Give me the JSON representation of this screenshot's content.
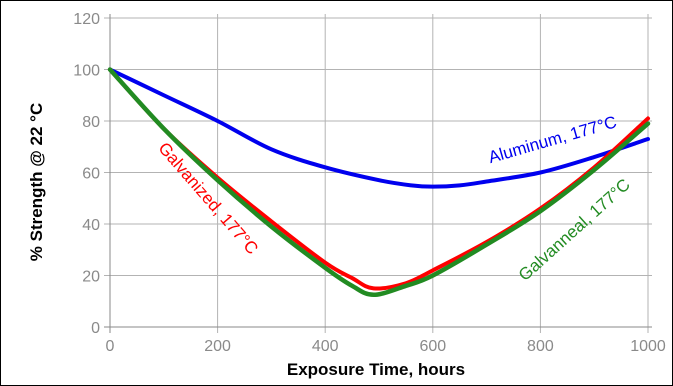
{
  "chart_data": {
    "type": "line",
    "title": "",
    "xlabel": "Exposure Time, hours",
    "ylabel": "% Strength @ 22 °C",
    "xlim": [
      0,
      1000
    ],
    "ylim": [
      0,
      120
    ],
    "x_ticks": [
      "0",
      "200",
      "400",
      "600",
      "800",
      "1000"
    ],
    "y_ticks": [
      "0",
      "20",
      "40",
      "60",
      "80",
      "100",
      "120"
    ],
    "grid": true,
    "series": [
      {
        "name": "Aluminum, 177°C",
        "color": "#0000ee",
        "points": [
          [
            0,
            100
          ],
          [
            100,
            90
          ],
          [
            200,
            80
          ],
          [
            300,
            69
          ],
          [
            400,
            62
          ],
          [
            500,
            57
          ],
          [
            560,
            55
          ],
          [
            600,
            54.5
          ],
          [
            650,
            55
          ],
          [
            700,
            56.5
          ],
          [
            800,
            60
          ],
          [
            900,
            66
          ],
          [
            1000,
            73
          ]
        ]
      },
      {
        "name": "Galvanized, 177°C",
        "color": "#ff0000",
        "points": [
          [
            0,
            100
          ],
          [
            100,
            77
          ],
          [
            200,
            58
          ],
          [
            300,
            41
          ],
          [
            400,
            25
          ],
          [
            450,
            19
          ],
          [
            490,
            15
          ],
          [
            550,
            17
          ],
          [
            600,
            22
          ],
          [
            700,
            33
          ],
          [
            800,
            46
          ],
          [
            900,
            62
          ],
          [
            1000,
            81
          ]
        ]
      },
      {
        "name": "Galvanneal, 177°C",
        "color": "#228b22",
        "points": [
          [
            0,
            100
          ],
          [
            100,
            77
          ],
          [
            200,
            57
          ],
          [
            300,
            39
          ],
          [
            400,
            23
          ],
          [
            450,
            16
          ],
          [
            490,
            12.5
          ],
          [
            550,
            16
          ],
          [
            600,
            20
          ],
          [
            700,
            32
          ],
          [
            800,
            45
          ],
          [
            900,
            61
          ],
          [
            1000,
            79
          ]
        ]
      }
    ]
  }
}
